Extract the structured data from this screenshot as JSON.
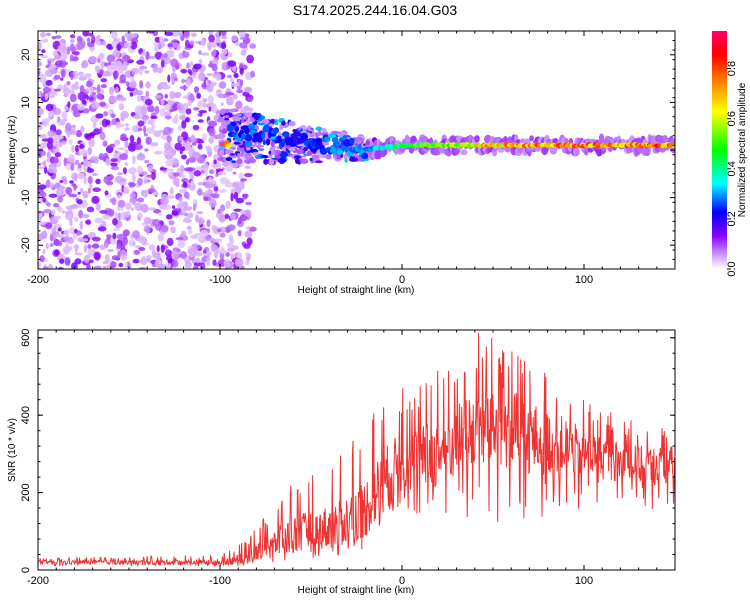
{
  "title": "S174.2025.244.16.04.G03",
  "chart_data": [
    {
      "type": "heatmap",
      "xlabel": "Height of straight line (km)",
      "ylabel": "Frequency (Hz)",
      "xlim": [
        -200,
        150
      ],
      "ylim": [
        -25,
        25
      ],
      "xticks": [
        -200,
        -100,
        0,
        100
      ],
      "xtick_labels": [
        "-200",
        "-100",
        "0",
        "100"
      ],
      "yticks": [
        -20,
        -10,
        0,
        10,
        20
      ],
      "ytick_labels": [
        "-20",
        "-10",
        "0",
        "10",
        "20"
      ],
      "colorbar": {
        "label": "Normalized spectral amplitude",
        "range": [
          0,
          0.95
        ],
        "ticks": [
          0.0,
          0.2,
          0.4,
          0.6,
          0.8
        ],
        "tick_labels": [
          "0.0",
          "0.2",
          "0.4",
          "0.6",
          "0.8"
        ],
        "colormap": [
          "#ffffff",
          "#cc99ff",
          "#8800ff",
          "#0000ff",
          "#00ffff",
          "#00ff00",
          "#ffff00",
          "#ff8800",
          "#ff0000",
          "#ff0066"
        ]
      },
      "ridge": {
        "description": "dominant frequency track",
        "x": [
          -95,
          -80,
          -60,
          -40,
          -20,
          0,
          50,
          100,
          150
        ],
        "y": [
          4.5,
          3.5,
          2.0,
          1.0,
          0.0,
          1.0,
          1.0,
          1.0,
          1.0
        ],
        "amplitude": [
          0.3,
          0.3,
          0.25,
          0.3,
          0.35,
          0.5,
          0.8,
          0.85,
          0.85
        ]
      },
      "noise_region": {
        "x": [
          -200,
          -90
        ],
        "y": [
          -25,
          25
        ],
        "amplitude": 0.1
      }
    },
    {
      "type": "line",
      "xlabel": "Height of straight line (km)",
      "ylabel": "SNR (10 * v/v)",
      "xlim": [
        -200,
        150
      ],
      "ylim": [
        0,
        620
      ],
      "xticks": [
        -200,
        -100,
        0,
        100
      ],
      "xtick_labels": [
        "-200",
        "-100",
        "0",
        "100"
      ],
      "yticks": [
        0,
        200,
        400,
        600
      ],
      "ytick_labels": [
        "0",
        "200",
        "400",
        "600"
      ],
      "color": "#ee3333",
      "series": [
        {
          "name": "SNR",
          "x": [
            -200,
            -150,
            -100,
            -85,
            -75,
            -60,
            -50,
            -40,
            -30,
            -20,
            -10,
            0,
            10,
            20,
            30,
            40,
            50,
            60,
            70,
            80,
            90,
            100,
            110,
            120,
            130,
            140,
            150
          ],
          "y": [
            20,
            20,
            20,
            30,
            60,
            90,
            100,
            110,
            130,
            160,
            230,
            280,
            290,
            300,
            330,
            360,
            380,
            360,
            340,
            330,
            320,
            300,
            290,
            280,
            270,
            270,
            270
          ],
          "max": [
            30,
            35,
            40,
            80,
            140,
            240,
            270,
            290,
            330,
            400,
            460,
            480,
            500,
            540,
            580,
            620,
            600,
            570,
            550,
            520,
            480,
            440,
            420,
            400,
            390,
            380,
            370
          ],
          "min": [
            10,
            10,
            10,
            10,
            15,
            20,
            30,
            35,
            40,
            50,
            80,
            120,
            130,
            140,
            150,
            120,
            90,
            100,
            120,
            140,
            150,
            160,
            170,
            170,
            160,
            150,
            140
          ]
        }
      ]
    }
  ]
}
